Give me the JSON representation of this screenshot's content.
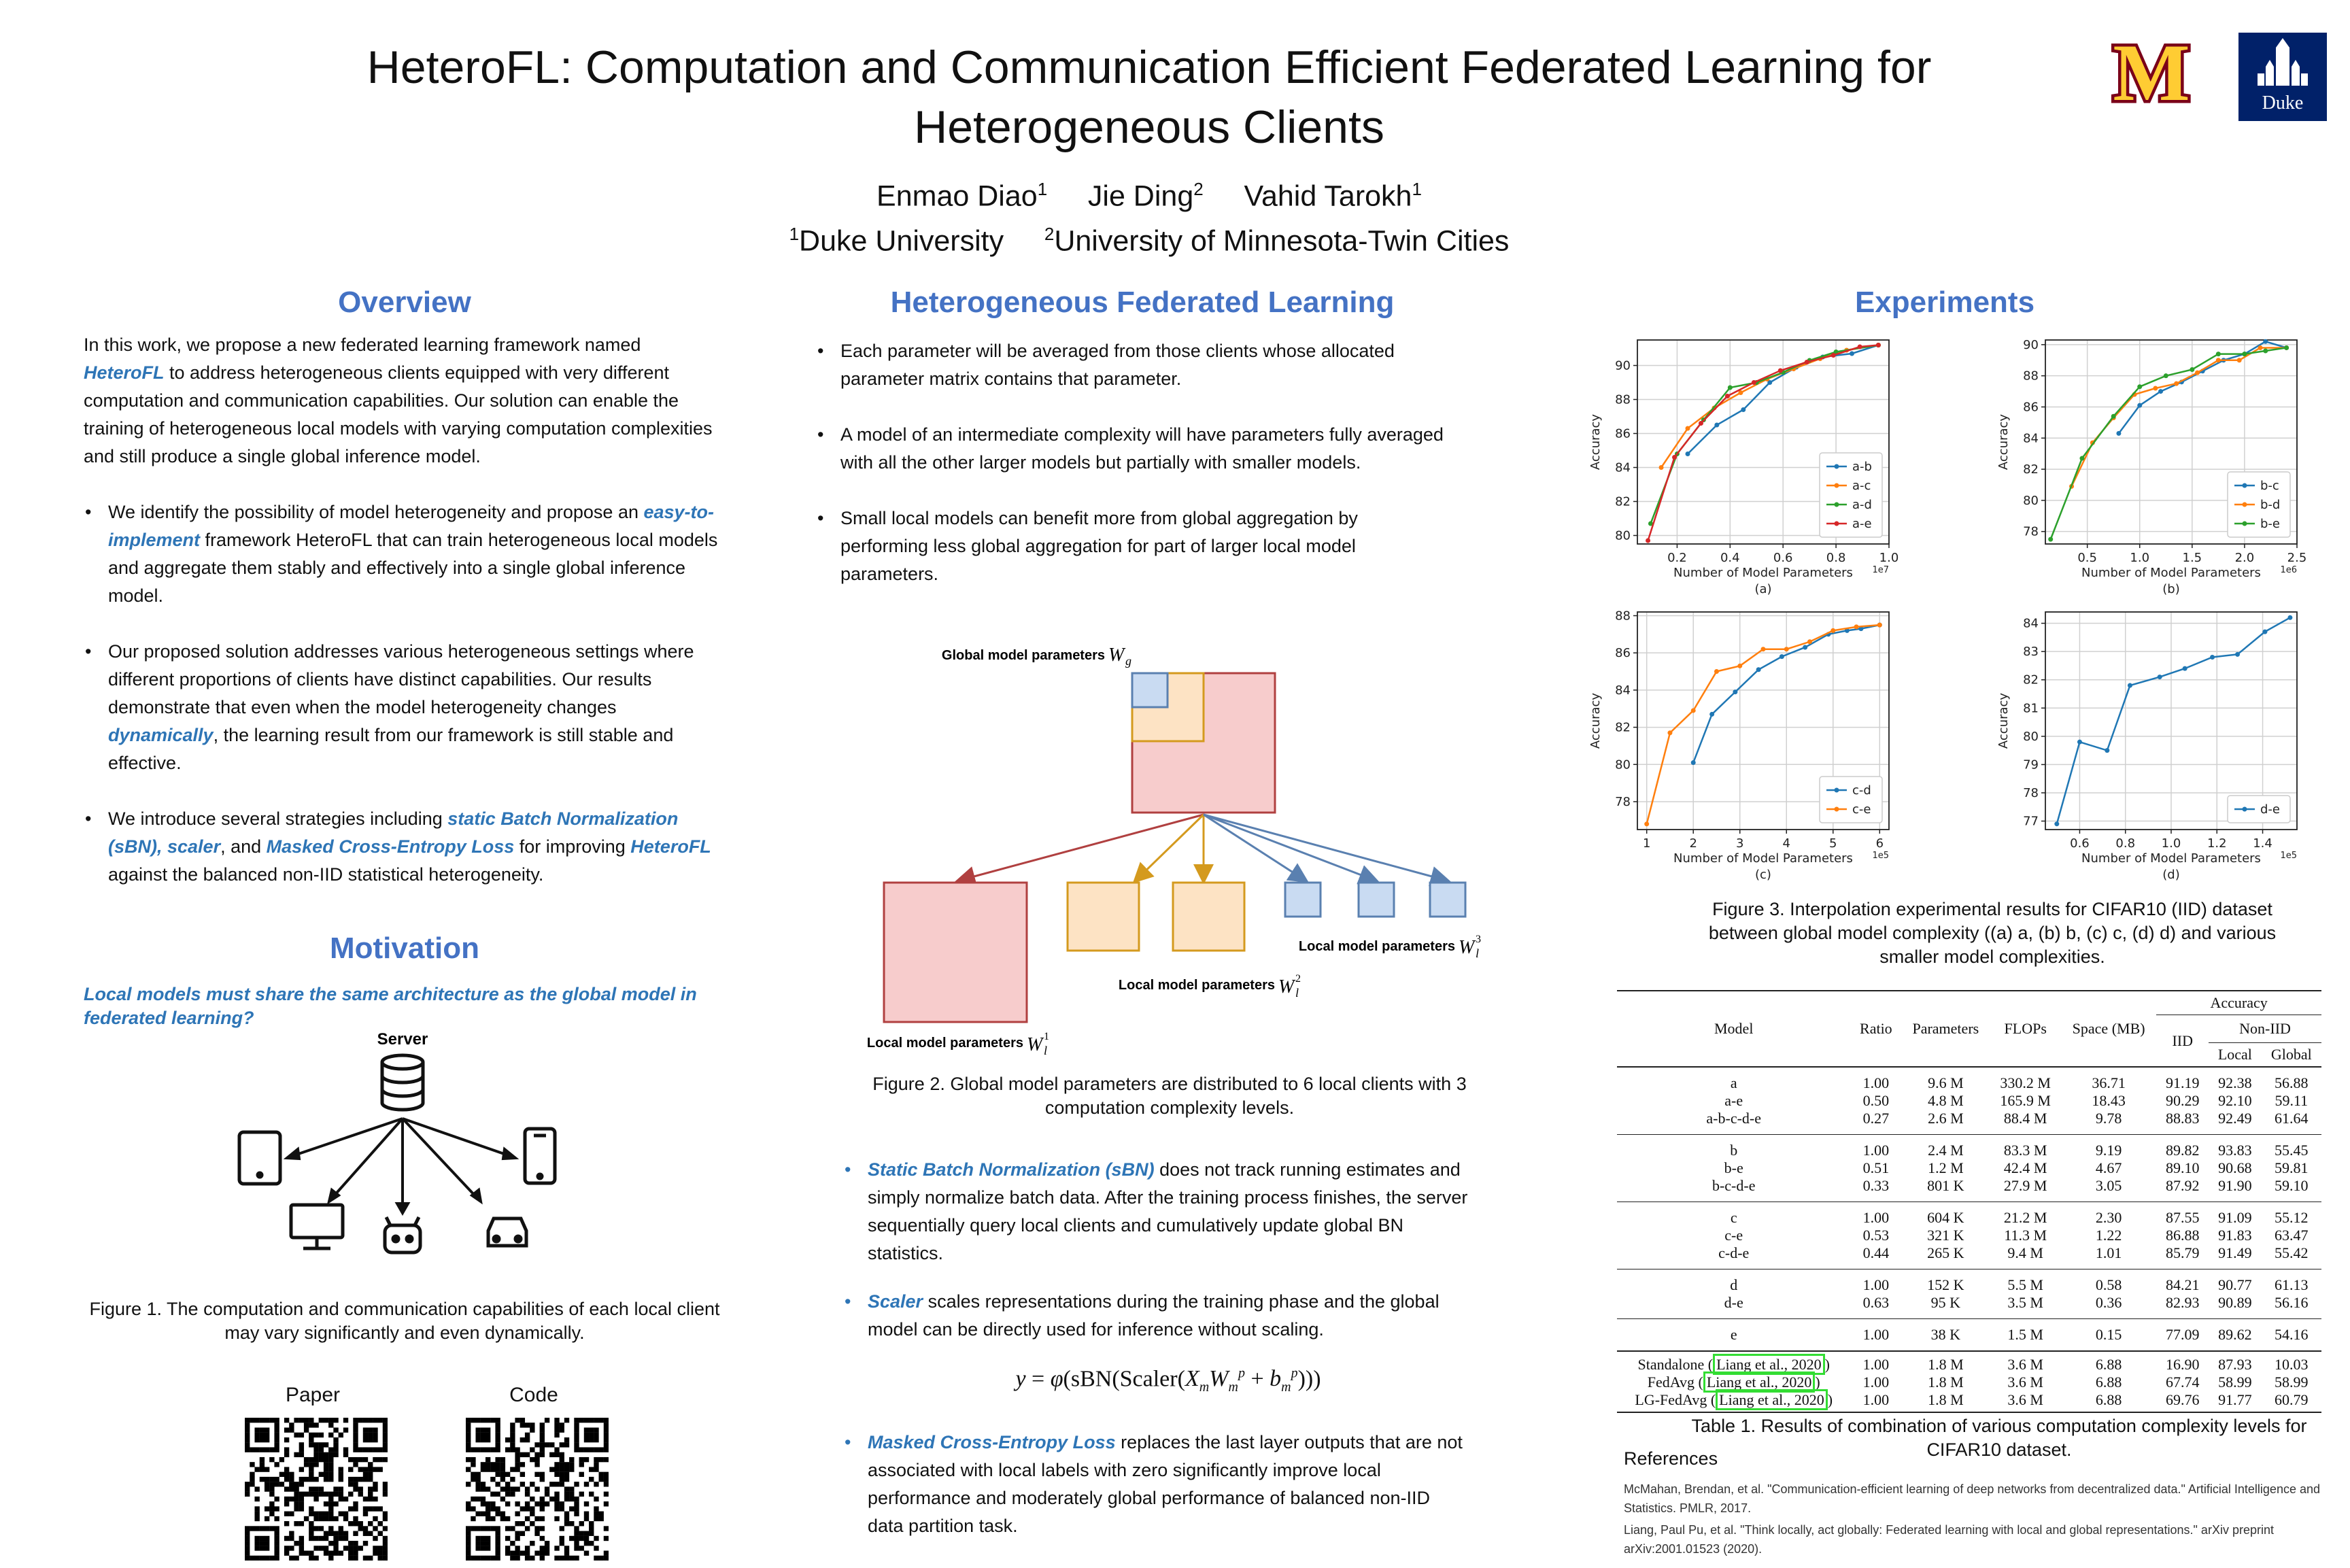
{
  "title": "HeteroFL: Computation and Communication Efficient Federated Learning for Heterogeneous Clients",
  "authors": [
    {
      "name": "Enmao Diao",
      "sup": "1"
    },
    {
      "name": "Jie Ding",
      "sup": "2"
    },
    {
      "name": "Vahid Tarokh",
      "sup": "1"
    }
  ],
  "affiliations": [
    {
      "sup": "1",
      "name": "Duke University"
    },
    {
      "sup": "2",
      "name": "University of Minnesota-Twin Cities"
    }
  ],
  "logos": {
    "umn": "M",
    "duke": "Duke"
  },
  "overview": {
    "heading": "Overview",
    "intro_pre": "In this work, we propose a new federated learning framework named ",
    "intro_em": "HeteroFL",
    "intro_post": " to address heterogeneous clients equipped with very different computation and communication capabilities. Our solution can enable the training of heterogeneous local models with varying computation complexities and still produce a single global inference model.",
    "b1_pre": "We identify the possibility of model heterogeneity and propose an ",
    "b1_em": "easy-to-implement",
    "b1_post": " framework HeteroFL that can train heterogeneous local models and aggregate them stably and effectively into a single global inference model.",
    "b2_pre": "Our proposed solution addresses various heterogeneous settings where different proportions of clients have distinct capabilities. Our results demonstrate that even when the model heterogeneity changes ",
    "b2_em": "dynamically",
    "b2_post": ", the learning result from our framework is still stable and effective.",
    "b3_pre": "We introduce several strategies including ",
    "b3_em1": "static Batch Normalization (sBN), scaler",
    "b3_mid": ", and ",
    "b3_em2": "Masked Cross-Entropy Loss",
    "b3_mid2": " for improving ",
    "b3_em3": "HeteroFL",
    "b3_post": " against the balanced non-IID statistical heterogeneity."
  },
  "motivation": {
    "heading": "Motivation",
    "question": "Local models must share the same architecture as the global model in federated learning?",
    "server_label": "Server",
    "caption": "Figure 1. The computation and communication capabilities of each local client may vary significantly and even dynamically.",
    "paper_label": "Paper",
    "code_label": "Code"
  },
  "hfl": {
    "heading": "Heterogeneous Federated Learning",
    "b1": "Each parameter will be averaged from those clients whose allocated parameter matrix contains that parameter.",
    "b2": "A model of an intermediate complexity will have parameters fully averaged with all the other larger models but partially with smaller models.",
    "b3": "Small local models can benefit more from global aggregation by performing less global aggregation for part of larger local model parameters.",
    "fig_global": "Global model parameters",
    "fig_local": "Local model parameters",
    "caption": "Figure 2. Global model parameters are distributed to 6 local clients with 3 computation complexity levels.",
    "s1_em": "Static Batch Normalization (sBN)",
    "s1_post": " does not track running estimates and simply normalize batch data. After the training process finishes, the server sequentially query local clients and cumulatively update global BN statistics.",
    "s2_em": "Scaler",
    "s2_post": " scales representations during the training phase and the global model can be directly used for inference without scaling.",
    "s3_em": "Masked Cross-Entropy Loss",
    "s3_post": " replaces the last layer outputs that are not associated with local labels with zero significantly improve local performance and moderately global performance of balanced non-IID data partition task."
  },
  "experiments": {
    "heading": "Experiments",
    "fig3_caption": "Figure 3. Interpolation experimental results for CIFAR10 (IID) dataset between global model complexity ((a) a, (b) b, (c) c, (d) d) and various smaller model complexities.",
    "table_caption": "Table 1. Results of combination of various computation complexity levels for CIFAR10 dataset.",
    "table": {
      "h_model": "Model",
      "h_ratio": "Ratio",
      "h_params": "Parameters",
      "h_flops": "FLOPs",
      "h_space": "Space (MB)",
      "h_acc": "Accuracy",
      "h_iid": "IID",
      "h_noniid": "Non-IID",
      "h_local": "Local",
      "h_global": "Global",
      "groups": [
        [
          [
            "a",
            "1.00",
            "9.6 M",
            "330.2 M",
            "36.71",
            "91.19",
            "92.38",
            "56.88"
          ],
          [
            "a-e",
            "0.50",
            "4.8 M",
            "165.9 M",
            "18.43",
            "90.29",
            "92.10",
            "59.11"
          ],
          [
            "a-b-c-d-e",
            "0.27",
            "2.6 M",
            "88.4 M",
            "9.78",
            "88.83",
            "92.49",
            "61.64"
          ]
        ],
        [
          [
            "b",
            "1.00",
            "2.4 M",
            "83.3 M",
            "9.19",
            "89.82",
            "93.83",
            "55.45"
          ],
          [
            "b-e",
            "0.51",
            "1.2 M",
            "42.4 M",
            "4.67",
            "89.10",
            "90.68",
            "59.81"
          ],
          [
            "b-c-d-e",
            "0.33",
            "801 K",
            "27.9 M",
            "3.05",
            "87.92",
            "91.90",
            "59.10"
          ]
        ],
        [
          [
            "c",
            "1.00",
            "604 K",
            "21.2 M",
            "2.30",
            "87.55",
            "91.09",
            "55.12"
          ],
          [
            "c-e",
            "0.53",
            "321 K",
            "11.3 M",
            "1.22",
            "86.88",
            "91.83",
            "63.47"
          ],
          [
            "c-d-e",
            "0.44",
            "265 K",
            "9.4 M",
            "1.01",
            "85.79",
            "91.49",
            "55.42"
          ]
        ],
        [
          [
            "d",
            "1.00",
            "152 K",
            "5.5 M",
            "0.58",
            "84.21",
            "90.77",
            "61.13"
          ],
          [
            "d-e",
            "0.63",
            "95 K",
            "3.5 M",
            "0.36",
            "82.93",
            "90.89",
            "56.16"
          ]
        ],
        [
          [
            "e",
            "1.00",
            "38 K",
            "1.5 M",
            "0.15",
            "77.09",
            "89.62",
            "54.16"
          ]
        ]
      ],
      "baselines": [
        {
          "name": "Standalone",
          "cite": "Liang et al., 2020",
          "vals": [
            "1.00",
            "1.8 M",
            "3.6 M",
            "6.88",
            "16.90",
            "87.93",
            "10.03"
          ]
        },
        {
          "name": "FedAvg",
          "cite": "Liang et al., 2020",
          "vals": [
            "1.00",
            "1.8 M",
            "3.6 M",
            "6.88",
            "67.74",
            "58.99",
            "58.99"
          ]
        },
        {
          "name": "LG-FedAvg",
          "cite": "Liang et al., 2020",
          "vals": [
            "1.00",
            "1.8 M",
            "3.6 M",
            "6.88",
            "69.76",
            "91.77",
            "60.79"
          ]
        }
      ]
    }
  },
  "references": {
    "heading": "References",
    "r1": "McMahan, Brendan, et al. \"Communication-efficient learning of deep networks from decentralized data.\" Artificial Intelligence and Statistics. PMLR, 2017.",
    "r2": "Liang, Paul Pu, et al. \"Think locally, act globally: Federated learning with local and global representations.\" arXiv preprint arXiv:2001.01523 (2020)."
  },
  "colors": {
    "blue": "#1f77b4",
    "orange": "#ff7f0e",
    "green": "#2ca02c",
    "red": "#d62728",
    "accent": "#4472c4"
  },
  "chart_data": [
    {
      "type": "line",
      "id": "a",
      "sublabel": "(a)",
      "xlabel": "Number of Model Parameters",
      "ylabel": "Accuracy",
      "x_scale_note": "1e7",
      "xlim": [
        0.05,
        1.0
      ],
      "ylim": [
        79.5,
        91.5
      ],
      "xticks": [
        "0.2",
        "0.4",
        "0.6",
        "0.8",
        "1.0"
      ],
      "xtick_vals": [
        0.2,
        0.4,
        0.6,
        0.8,
        1.0
      ],
      "yticks": [
        80,
        82,
        84,
        86,
        88,
        90
      ],
      "legend": "lower right",
      "series": [
        {
          "name": "a-b",
          "color": "#1f77b4",
          "x": [
            0.24,
            0.35,
            0.45,
            0.55,
            0.65,
            0.75,
            0.86,
            0.96
          ],
          "y": [
            84.8,
            86.5,
            87.4,
            89.0,
            89.9,
            90.5,
            90.7,
            91.2
          ]
        },
        {
          "name": "a-c",
          "color": "#ff7f0e",
          "x": [
            0.14,
            0.24,
            0.34,
            0.44,
            0.54,
            0.64,
            0.74,
            0.84,
            0.96
          ],
          "y": [
            84.0,
            86.3,
            87.5,
            88.4,
            89.2,
            89.8,
            90.4,
            90.9,
            91.2
          ]
        },
        {
          "name": "a-d",
          "color": "#2ca02c",
          "x": [
            0.1,
            0.2,
            0.3,
            0.4,
            0.5,
            0.6,
            0.7,
            0.8,
            0.96
          ],
          "y": [
            80.7,
            84.8,
            86.8,
            88.7,
            89.0,
            89.6,
            90.3,
            90.8,
            91.2
          ]
        },
        {
          "name": "a-e",
          "color": "#d62728",
          "x": [
            0.09,
            0.19,
            0.29,
            0.39,
            0.49,
            0.59,
            0.69,
            0.79,
            0.89,
            0.96
          ],
          "y": [
            79.7,
            84.6,
            86.6,
            88.2,
            89.0,
            89.7,
            90.2,
            90.6,
            91.1,
            91.2
          ]
        }
      ]
    },
    {
      "type": "line",
      "id": "b",
      "sublabel": "(b)",
      "xlabel": "Number of Model Parameters",
      "ylabel": "Accuracy",
      "x_scale_note": "1e6",
      "xlim": [
        0.1,
        2.5
      ],
      "ylim": [
        77.2,
        90.3
      ],
      "xticks": [
        "0.5",
        "1.0",
        "1.5",
        "2.0",
        "2.5"
      ],
      "xtick_vals": [
        0.5,
        1.0,
        1.5,
        2.0,
        2.5
      ],
      "yticks": [
        78,
        80,
        82,
        84,
        86,
        88,
        90
      ],
      "legend": "lower right",
      "series": [
        {
          "name": "b-c",
          "color": "#1f77b4",
          "x": [
            0.8,
            1.0,
            1.2,
            1.4,
            1.6,
            1.8,
            2.0,
            2.2,
            2.4
          ],
          "y": [
            84.3,
            86.1,
            87.0,
            87.6,
            88.3,
            89.0,
            89.4,
            90.2,
            89.8
          ]
        },
        {
          "name": "b-d",
          "color": "#ff7f0e",
          "x": [
            0.35,
            0.55,
            0.75,
            0.95,
            1.15,
            1.35,
            1.55,
            1.75,
            1.95,
            2.15,
            2.4
          ],
          "y": [
            80.9,
            83.7,
            85.3,
            86.8,
            87.2,
            87.5,
            88.2,
            89.0,
            89.0,
            89.8,
            89.8
          ]
        },
        {
          "name": "b-e",
          "color": "#2ca02c",
          "x": [
            0.15,
            0.45,
            0.75,
            1.0,
            1.25,
            1.5,
            1.75,
            2.0,
            2.2,
            2.4
          ],
          "y": [
            77.5,
            82.7,
            85.4,
            87.3,
            88.0,
            88.4,
            89.4,
            89.4,
            89.6,
            89.8
          ]
        }
      ]
    },
    {
      "type": "line",
      "id": "c",
      "sublabel": "(c)",
      "xlabel": "Number of Model Parameters",
      "ylabel": "Accuracy",
      "x_scale_note": "1e5",
      "xlim": [
        0.8,
        6.2
      ],
      "ylim": [
        76.5,
        88.2
      ],
      "xticks": [
        "1",
        "2",
        "3",
        "4",
        "5",
        "6"
      ],
      "xtick_vals": [
        1,
        2,
        3,
        4,
        5,
        6
      ],
      "yticks": [
        78,
        80,
        82,
        84,
        86,
        88
      ],
      "legend": "lower right",
      "series": [
        {
          "name": "c-d",
          "color": "#1f77b4",
          "x": [
            2.0,
            2.4,
            2.9,
            3.4,
            3.9,
            4.4,
            4.9,
            5.3,
            5.6,
            6.0
          ],
          "y": [
            80.1,
            82.7,
            83.9,
            85.1,
            85.8,
            86.3,
            87.0,
            87.2,
            87.3,
            87.5
          ]
        },
        {
          "name": "c-e",
          "color": "#ff7f0e",
          "x": [
            1.0,
            1.5,
            2.0,
            2.5,
            3.0,
            3.5,
            4.0,
            4.5,
            5.0,
            5.5,
            6.0
          ],
          "y": [
            76.8,
            81.7,
            82.9,
            85.0,
            85.3,
            86.2,
            86.2,
            86.6,
            87.2,
            87.4,
            87.5
          ]
        }
      ]
    },
    {
      "type": "line",
      "id": "d",
      "sublabel": "(d)",
      "xlabel": "Number of Model Parameters",
      "ylabel": "Accuracy",
      "x_scale_note": "1e5",
      "xlim": [
        0.45,
        1.55
      ],
      "ylim": [
        76.7,
        84.4
      ],
      "xticks": [
        "0.6",
        "0.8",
        "1.0",
        "1.2",
        "1.4"
      ],
      "xtick_vals": [
        0.6,
        0.8,
        1.0,
        1.2,
        1.4
      ],
      "yticks": [
        77,
        78,
        79,
        80,
        81,
        82,
        83,
        84
      ],
      "legend": "lower right",
      "series": [
        {
          "name": "d-e",
          "color": "#1f77b4",
          "x": [
            0.5,
            0.6,
            0.72,
            0.82,
            0.95,
            1.06,
            1.18,
            1.29,
            1.41,
            1.52
          ],
          "y": [
            76.9,
            79.8,
            79.5,
            81.8,
            82.1,
            82.4,
            82.8,
            82.9,
            83.7,
            84.2
          ]
        }
      ]
    }
  ]
}
